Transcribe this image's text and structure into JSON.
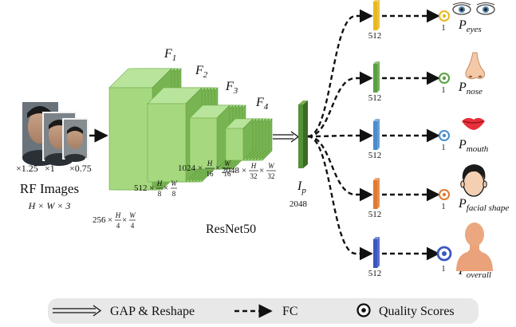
{
  "input": {
    "title": "RF Images",
    "dims": "H × W × 3",
    "scales": [
      "×1.25",
      "×1",
      "×0.75"
    ]
  },
  "backbone": {
    "name": "ResNet50",
    "stages": [
      {
        "name": "F",
        "sub": "1",
        "channels": "256",
        "div": "4"
      },
      {
        "name": "F",
        "sub": "2",
        "channels": "512",
        "div": "8"
      },
      {
        "name": "F",
        "sub": "3",
        "channels": "1024",
        "div": "16"
      },
      {
        "name": "F",
        "sub": "4",
        "channels": "2048",
        "div": "32"
      }
    ],
    "times": "×",
    "h_letter": "H",
    "w_letter": "W"
  },
  "pooled": {
    "name": "I",
    "sub": "p",
    "dim": "2048"
  },
  "heads": [
    {
      "name": "P",
      "sub": "eyes",
      "fc_dim": "512",
      "out_dim": "1",
      "color": "#e8b820",
      "icon": "eyes-icon"
    },
    {
      "name": "P",
      "sub": "nose",
      "fc_dim": "512",
      "out_dim": "1",
      "color": "#5aa040",
      "icon": "nose-icon"
    },
    {
      "name": "P",
      "sub": "mouth",
      "fc_dim": "512",
      "out_dim": "1",
      "color": "#4a8ccc",
      "icon": "mouth-icon"
    },
    {
      "name": "P",
      "sub": "facial shape",
      "fc_dim": "512",
      "out_dim": "1",
      "color": "#e07a30",
      "icon": "facial-shape-icon"
    },
    {
      "name": "P",
      "sub": "overall",
      "fc_dim": "512",
      "out_dim": "1",
      "color": "#3a56c0",
      "icon": "overall-icon"
    }
  ],
  "legend": {
    "gap": "GAP & Reshape",
    "fc": "FC",
    "quality": "Quality Scores"
  }
}
